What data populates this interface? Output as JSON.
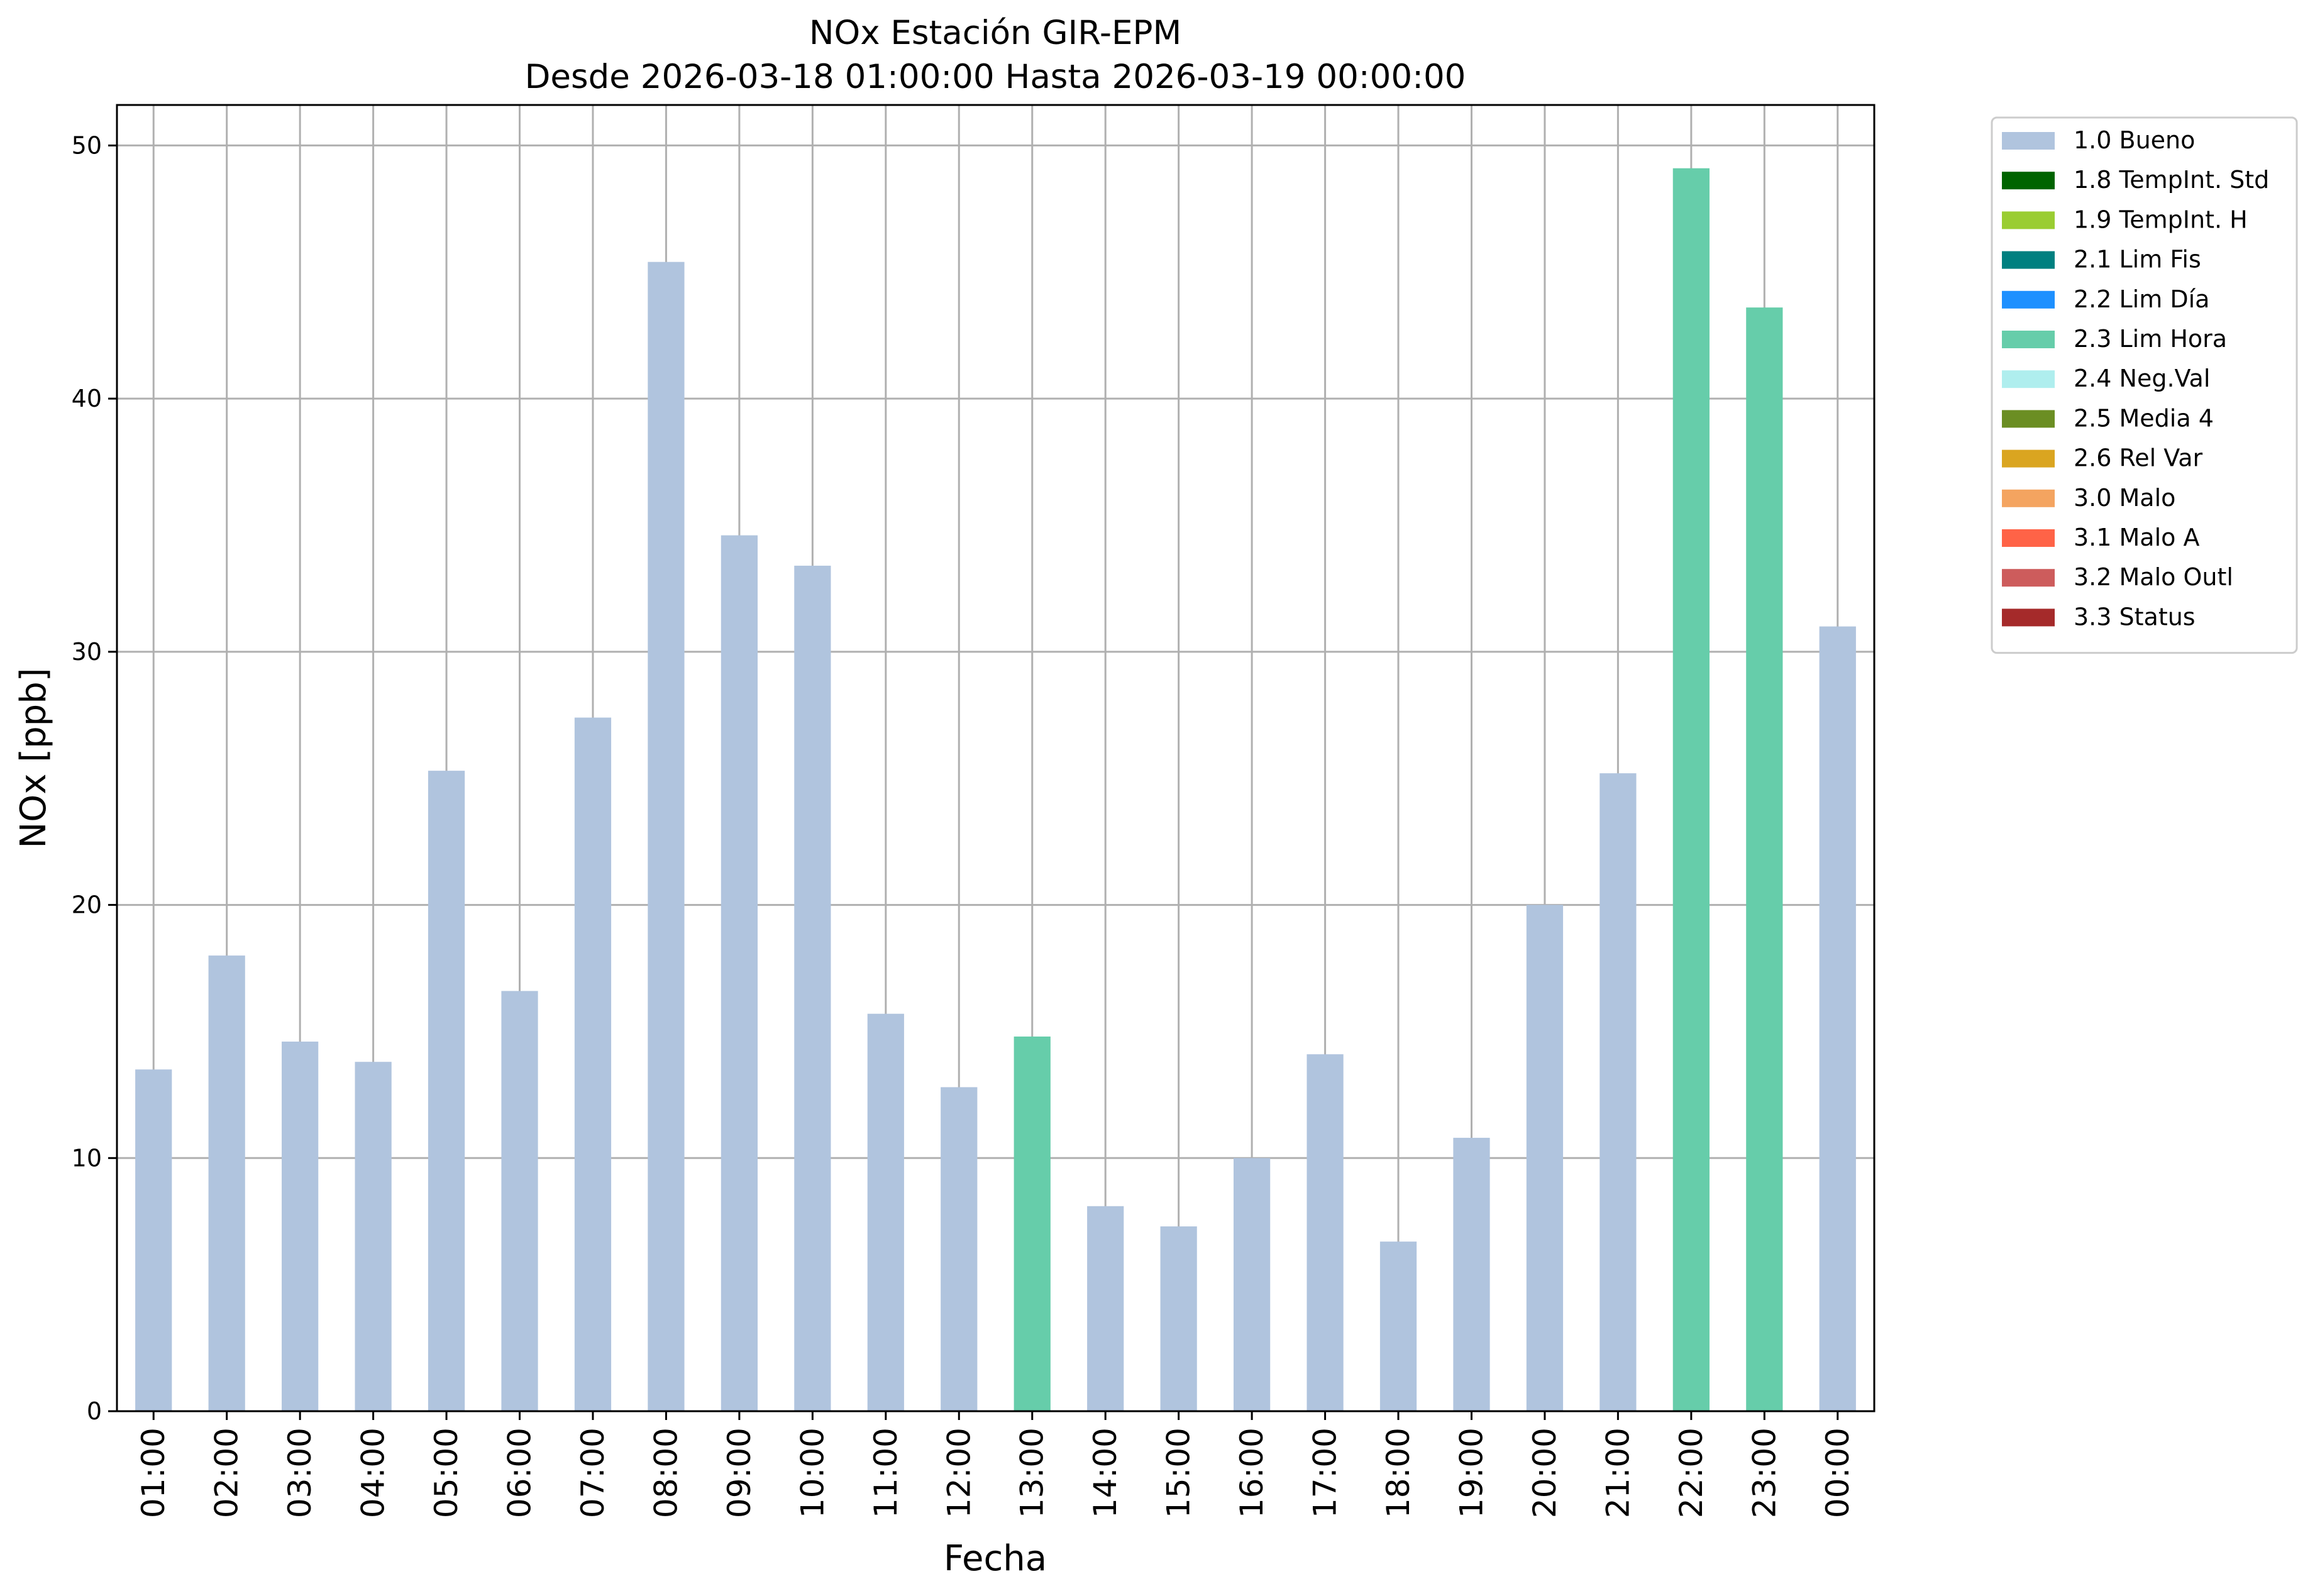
{
  "chart_data": {
    "type": "bar",
    "title": "NOx Estación GIR-EPM",
    "subtitle": "Desde 2026-03-18 01:00:00 Hasta 2026-03-19 00:00:00",
    "xlabel": "Fecha",
    "ylabel": "NOx [ppb]",
    "ylim": [
      0,
      51.6
    ],
    "yticks": [
      0,
      10,
      20,
      30,
      40,
      50
    ],
    "grid": true,
    "legend_placement": "upper right, outside plot",
    "categories": [
      "01:00",
      "02:00",
      "03:00",
      "04:00",
      "05:00",
      "06:00",
      "07:00",
      "08:00",
      "09:00",
      "10:00",
      "11:00",
      "12:00",
      "13:00",
      "14:00",
      "15:00",
      "16:00",
      "17:00",
      "18:00",
      "19:00",
      "20:00",
      "21:00",
      "22:00",
      "23:00",
      "00:00"
    ],
    "values": [
      13.5,
      18.0,
      14.6,
      13.8,
      25.3,
      16.6,
      27.4,
      45.4,
      34.6,
      33.4,
      15.7,
      12.8,
      14.8,
      8.1,
      7.3,
      10.0,
      14.1,
      6.7,
      10.8,
      20.0,
      25.2,
      49.1,
      43.6,
      31.0
    ],
    "flags": [
      "1.0 Bueno",
      "1.0 Bueno",
      "1.0 Bueno",
      "1.0 Bueno",
      "1.0 Bueno",
      "1.0 Bueno",
      "1.0 Bueno",
      "1.0 Bueno",
      "1.0 Bueno",
      "1.0 Bueno",
      "1.0 Bueno",
      "1.0 Bueno",
      "2.3 Lim Hora",
      "1.0 Bueno",
      "1.0 Bueno",
      "1.0 Bueno",
      "1.0 Bueno",
      "1.0 Bueno",
      "1.0 Bueno",
      "1.0 Bueno",
      "1.0 Bueno",
      "2.3 Lim Hora",
      "2.3 Lim Hora",
      "1.0 Bueno"
    ],
    "legend": [
      {
        "name": "1.0 Bueno",
        "color": "#b0c4de"
      },
      {
        "name": "1.8 TempInt. Std",
        "color": "#006400"
      },
      {
        "name": "1.9 TempInt. H",
        "color": "#9acd32"
      },
      {
        "name": "2.1 Lim Fis",
        "color": "#008080"
      },
      {
        "name": "2.2 Lim Día",
        "color": "#1e90ff"
      },
      {
        "name": "2.3 Lim Hora",
        "color": "#66cdaa"
      },
      {
        "name": "2.4 Neg.Val",
        "color": "#afeeee"
      },
      {
        "name": "2.5 Media 4",
        "color": "#6b8e23"
      },
      {
        "name": "2.6 Rel Var",
        "color": "#daa520"
      },
      {
        "name": "3.0 Malo",
        "color": "#f4a460"
      },
      {
        "name": "3.1 Malo A",
        "color": "#ff6347"
      },
      {
        "name": "3.2 Malo Outl",
        "color": "#cd5c5c"
      },
      {
        "name": "3.3 Status",
        "color": "#a52a2a"
      }
    ],
    "grid_color": "#b0b0b0"
  }
}
